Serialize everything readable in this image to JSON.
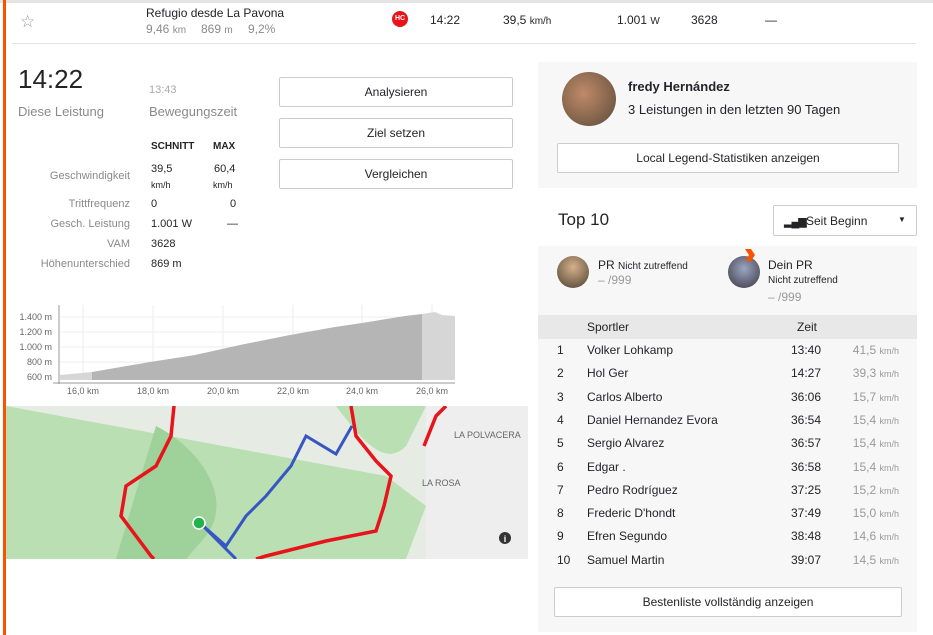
{
  "segment": {
    "name": "Refugio desde La Pavona",
    "distance": "9,46",
    "distance_unit": "km",
    "elevation": "869",
    "elevation_unit": "m",
    "grade": "9,2%",
    "category": "HC",
    "time": "14:22",
    "speed": "39,5",
    "speed_unit": "km/h",
    "power": "1.001",
    "power_unit": "W",
    "vam": "3628",
    "extra": "—"
  },
  "effort": {
    "time": "14:22",
    "time_label": "Diese Leistung",
    "moving_time": "13:43",
    "moving_label": "Bewegungszeit"
  },
  "stats": {
    "col_avg": "SCHNITT",
    "col_max": "MAX",
    "rows": [
      {
        "label": "Geschwindigkeit",
        "avg": "39,5",
        "avg_unit": "km/h",
        "max": "60,4",
        "max_unit": "km/h"
      },
      {
        "label": "Trittfrequenz",
        "avg": "0",
        "max": "0"
      },
      {
        "label": "Gesch. Leistung",
        "avg": "1.001 W",
        "max": "—"
      },
      {
        "label": "VAM",
        "avg": "3628",
        "max": ""
      },
      {
        "label": "Höhenunterschied",
        "avg": "869 m",
        "max": ""
      }
    ]
  },
  "actions": {
    "analyze": "Analysieren",
    "goal": "Ziel setzen",
    "compare": "Vergleichen"
  },
  "elevation_chart": {
    "y_ticks": [
      "1.400 m",
      "1.200 m",
      "1.000 m",
      "800 m",
      "600 m"
    ],
    "x_ticks": [
      "16,0 km",
      "18,0 km",
      "20,0 km",
      "22,0 km",
      "24,0 km",
      "26,0 km"
    ]
  },
  "map": {
    "labels": [
      "LA POLVACERA",
      "LA ROSA"
    ],
    "info": "i"
  },
  "local_legend": {
    "name": "fredy Hernández",
    "desc": "3 Leistungen in den letzten 90 Tagen",
    "button": "Local Legend-Statistiken anzeigen"
  },
  "top10": {
    "title": "Top 10",
    "filter": "Seit Beginn",
    "pr_label": "PR",
    "pr_value": "Nicht zutreffend",
    "pr_rank": "– /999",
    "your_pr": "Dein PR",
    "your_pr_value": "Nicht zutreffend",
    "your_pr_rank": "– /999",
    "col_athlete": "Sportler",
    "col_time": "Zeit",
    "unit": "km/h",
    "rows": [
      {
        "rank": "1",
        "name": "Volker Lohkamp",
        "time": "13:40",
        "speed": "41,5"
      },
      {
        "rank": "2",
        "name": "Hol Ger",
        "time": "14:27",
        "speed": "39,3"
      },
      {
        "rank": "3",
        "name": "Carlos Alberto",
        "time": "36:06",
        "speed": "15,7"
      },
      {
        "rank": "4",
        "name": "Daniel Hernandez Evora",
        "time": "36:54",
        "speed": "15,4"
      },
      {
        "rank": "5",
        "name": "Sergio Alvarez",
        "time": "36:57",
        "speed": "15,4"
      },
      {
        "rank": "6",
        "name": "Edgar .",
        "time": "36:58",
        "speed": "15,4"
      },
      {
        "rank": "7",
        "name": "Pedro Rodríguez",
        "time": "37:25",
        "speed": "15,2"
      },
      {
        "rank": "8",
        "name": "Frederic D'hondt",
        "time": "37:49",
        "speed": "15,0"
      },
      {
        "rank": "9",
        "name": "Efren Segundo",
        "time": "38:48",
        "speed": "14,6"
      },
      {
        "rank": "10",
        "name": "Samuel Martin",
        "time": "39:07",
        "speed": "14,5"
      }
    ],
    "full_button": "Bestenliste vollständig anzeigen"
  },
  "colors": {
    "accent": "#fc5200",
    "route": "#e8131b",
    "map_green": "#b9dfb3",
    "hc": "#e8131b"
  }
}
